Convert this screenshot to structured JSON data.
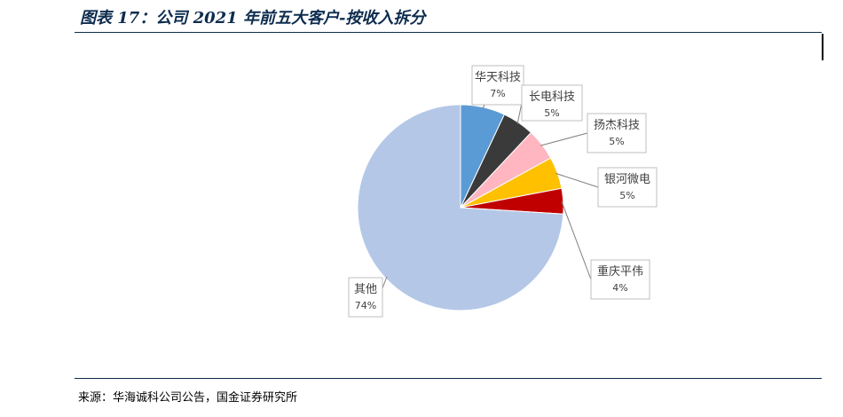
{
  "title": "图表 17：公司 2021 年前五大客户-按收入拆分",
  "source": "来源：华海诚科公司公告，国金证券研究所",
  "chart_data": {
    "type": "pie",
    "slices": [
      {
        "label": "华天科技",
        "value": 7,
        "value_label": "7%",
        "color": "#5b9bd5"
      },
      {
        "label": "长电科技",
        "value": 5,
        "value_label": "5%",
        "color": "#3a3a3a"
      },
      {
        "label": "扬杰科技",
        "value": 5,
        "value_label": "5%",
        "color": "#ffb6c1"
      },
      {
        "label": "银河微电",
        "value": 5,
        "value_label": "5%",
        "color": "#ffc000"
      },
      {
        "label": "重庆平伟",
        "value": 4,
        "value_label": "4%",
        "color": "#c00000"
      },
      {
        "label": "其他",
        "value": 74,
        "value_label": "74%",
        "color": "#b4c7e7"
      }
    ],
    "start_angle": "12 o'clock",
    "direction": "clockwise",
    "legend": "none",
    "data_labels": "callout boxes with leader lines"
  }
}
